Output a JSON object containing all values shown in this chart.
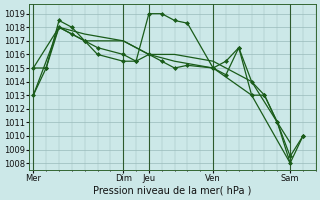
{
  "background_color": "#cce8e8",
  "grid_color": "#99bbbb",
  "line_color": "#1a5c1a",
  "xlabel": "Pression niveau de la mer( hPa )",
  "ylim": [
    1007.5,
    1019.7
  ],
  "yticks": [
    1008,
    1009,
    1010,
    1011,
    1012,
    1013,
    1014,
    1015,
    1016,
    1017,
    1018,
    1019
  ],
  "xtick_labels": [
    "Mer",
    "Dim",
    "Jeu",
    "Ven",
    "Sam"
  ],
  "xtick_positions": [
    0,
    7,
    9,
    14,
    20
  ],
  "xlim": [
    -0.3,
    22
  ],
  "num_xgrid": 22,
  "series": [
    {
      "x": [
        0,
        2,
        4,
        7,
        9,
        11,
        14,
        17,
        20
      ],
      "y": [
        1013.0,
        1018.0,
        1017.0,
        1017.0,
        1016.0,
        1016.0,
        1015.5,
        1014.0,
        1009.5
      ],
      "marker": false,
      "linewidth": 0.9
    },
    {
      "x": [
        0,
        2,
        4,
        7,
        9,
        11,
        14,
        17,
        20
      ],
      "y": [
        1015.0,
        1018.0,
        1017.5,
        1017.0,
        1016.0,
        1015.5,
        1015.0,
        1013.0,
        1008.0
      ],
      "marker": false,
      "linewidth": 0.9
    },
    {
      "x": [
        0,
        1,
        2,
        3,
        4,
        5,
        7,
        8,
        9,
        10,
        11,
        12,
        14,
        15,
        16,
        17,
        18,
        19,
        20,
        21
      ],
      "y": [
        1013.0,
        1015.0,
        1018.5,
        1018.0,
        1017.0,
        1016.5,
        1016.0,
        1015.5,
        1019.0,
        1019.0,
        1018.5,
        1018.3,
        1015.0,
        1014.5,
        1016.5,
        1013.0,
        1013.0,
        1011.0,
        1008.5,
        1010.0
      ],
      "marker": true,
      "linewidth": 0.9
    },
    {
      "x": [
        0,
        1,
        2,
        3,
        4,
        5,
        7,
        8,
        9,
        10,
        11,
        12,
        14,
        15,
        16,
        17,
        18,
        19,
        20,
        21
      ],
      "y": [
        1015.0,
        1015.0,
        1018.0,
        1017.5,
        1017.0,
        1016.0,
        1015.5,
        1015.5,
        1016.0,
        1015.5,
        1015.0,
        1015.2,
        1015.0,
        1015.5,
        1016.5,
        1014.0,
        1013.0,
        1011.0,
        1008.0,
        1010.0
      ],
      "marker": true,
      "linewidth": 0.9
    }
  ]
}
